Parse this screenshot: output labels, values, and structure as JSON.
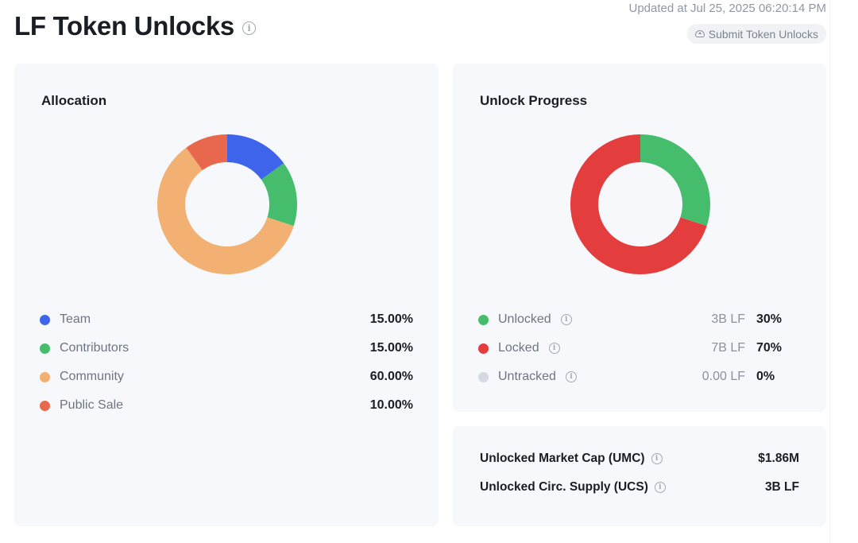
{
  "header": {
    "title": "LF Token Unlocks",
    "updated": "Updated at Jul 25, 2025 06:20:14 PM",
    "submit_label": "Submit Token Unlocks"
  },
  "allocation": {
    "title": "Allocation",
    "items": [
      {
        "label": "Team",
        "value": "15.00%",
        "percent": 15,
        "color": "#3d64ea"
      },
      {
        "label": "Contributors",
        "value": "15.00%",
        "percent": 15,
        "color": "#46bd6c"
      },
      {
        "label": "Community",
        "value": "60.00%",
        "percent": 60,
        "color": "#f2b072"
      },
      {
        "label": "Public Sale",
        "value": "10.00%",
        "percent": 10,
        "color": "#e8684e"
      }
    ]
  },
  "progress": {
    "title": "Unlock Progress",
    "items": [
      {
        "label": "Unlocked",
        "amount": "3B LF",
        "value": "30%",
        "percent": 30,
        "color": "#46bd6c"
      },
      {
        "label": "Locked",
        "amount": "7B LF",
        "value": "70%",
        "percent": 70,
        "color": "#e43d3d"
      },
      {
        "label": "Untracked",
        "amount": "0.00 LF",
        "value": "0%",
        "percent": 0,
        "color": "#d5d9e2"
      }
    ]
  },
  "market": {
    "rows": [
      {
        "label": "Unlocked Market Cap (UMC)",
        "value": "$1.86M"
      },
      {
        "label": "Unlocked Circ. Supply (UCS)",
        "value": "3B LF"
      }
    ]
  }
}
